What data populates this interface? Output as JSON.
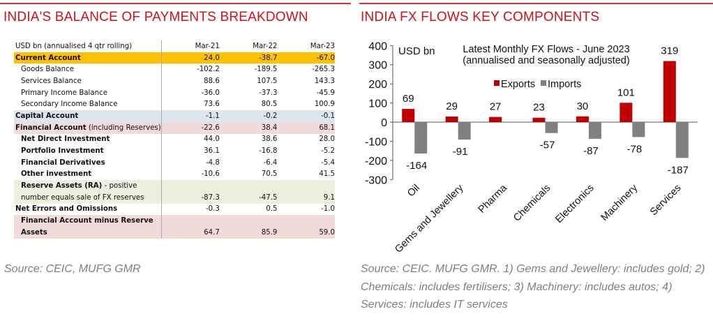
{
  "left": {
    "title": "INDIA'S BALANCE OF PAYMENTS BREAKDOWN",
    "table": {
      "header": [
        "USD bn (annualised 4 qtr rolling)",
        "Mar-21",
        "Mar-22",
        "Mar-23"
      ],
      "rows": [
        {
          "label": "Current Account",
          "values": [
            "24.0",
            "-38.7",
            "-67.0"
          ]
        },
        {
          "label": "Goods Balance",
          "values": [
            "-102.2",
            "-189.5",
            "-265.3"
          ]
        },
        {
          "label": "Services Balance",
          "values": [
            "88.6",
            "107.5",
            "143.3"
          ]
        },
        {
          "label": "Primary Income Balance",
          "values": [
            "-36.0",
            "-37.3",
            "-45.9"
          ]
        },
        {
          "label": "Secondary Income Balance",
          "values": [
            "73.6",
            "80.5",
            "100.9"
          ]
        },
        {
          "label": "Capital Account",
          "values": [
            "-1.1",
            "-0.2",
            "-0.1"
          ]
        },
        {
          "label": "Financial Account",
          "label_suffix": " (including Reserves)",
          "values": [
            "-22.6",
            "38.4",
            "68.1"
          ]
        },
        {
          "label": "Net Direct Investment",
          "values": [
            "44.0",
            "38.6",
            "28.0"
          ]
        },
        {
          "label": "Portfolio Investment",
          "values": [
            "36.1",
            "-16.8",
            "-5.2"
          ]
        },
        {
          "label": "Financial Derivatives",
          "values": [
            "-4.8",
            "-6.4",
            "-5.4"
          ]
        },
        {
          "label": "Other investment",
          "values": [
            "-10.6",
            "70.5",
            "41.5"
          ]
        },
        {
          "label": "Reserve Assets (RA)",
          "label_suffix": " - positive",
          "label_line2": "number  equals sale of FX reserves",
          "values": [
            "-87.3",
            "-47.5",
            "9.1"
          ]
        },
        {
          "label": "Net Errors and Omissions",
          "values": [
            "-0.3",
            "0.5",
            "-1.0"
          ]
        },
        {
          "label": "Financial Account minus Reserve",
          "label_line2": "Assets",
          "values": [
            "64.7",
            "85.9",
            "59.0"
          ]
        }
      ]
    },
    "source": "Source: CEIC, MUFG GMR"
  },
  "right": {
    "title": "INDIA FX FLOWS KEY COMPONENTS",
    "source": "Source: CEIC. MUFG GMR. 1) Gems and Jewellery: includes gold; 2) Chemicals: includes fertilisers; 3) Machinery: includes autos; 4) Services: includes IT services"
  },
  "colors": {
    "accent": "#d0101a",
    "exports": "#c00000",
    "imports": "#808080",
    "current_account": "#ffc000",
    "capital_account": "#dce6f1",
    "financial_account": "#f2dcdb",
    "reserve_assets": "#ebf1de"
  },
  "chart_data": {
    "type": "bar",
    "title": "Latest Monthly FX Flows - June 2023",
    "subtitle": "(annualised and seasonally adjusted)",
    "ylabel": "USD bn",
    "ylim": [
      -300,
      400
    ],
    "yticks": [
      400,
      300,
      200,
      100,
      0,
      -100,
      -200,
      -300
    ],
    "grid": false,
    "legend": "top-center",
    "categories": [
      "Oil",
      "Gems and Jewellery",
      "Pharma",
      "Chemicals",
      "Electronics",
      "Machinery",
      "Services"
    ],
    "series": [
      {
        "name": "Exports",
        "values": [
          69,
          29,
          27,
          23,
          30,
          101,
          319
        ]
      },
      {
        "name": "Imports",
        "values": [
          -164,
          -91,
          null,
          -57,
          -87,
          -78,
          -187
        ]
      }
    ]
  }
}
